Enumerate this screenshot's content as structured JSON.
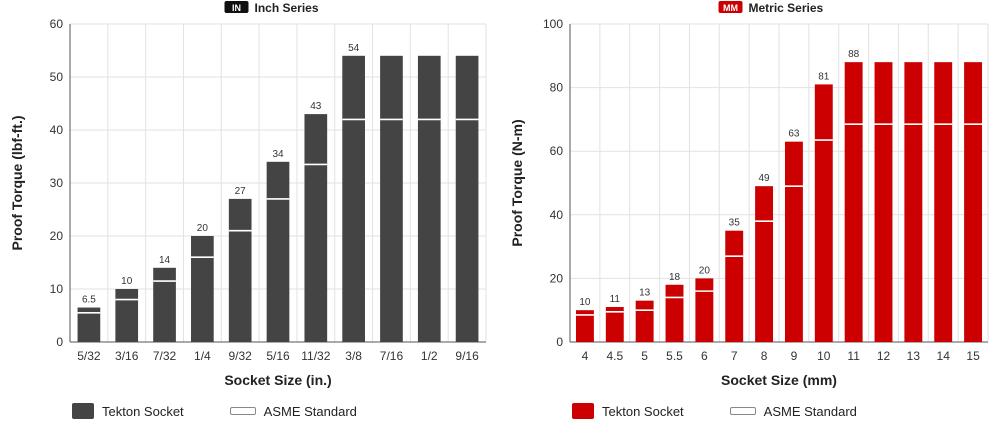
{
  "chart_data": [
    {
      "id": "inch",
      "type": "bar",
      "badge": "IN",
      "badge_color": "#111111",
      "title": "Inch Series",
      "xlabel": "Socket Size (in.)",
      "ylabel": "Proof Torque (lbf-ft.)",
      "ylim": [
        0,
        60
      ],
      "yticks": [
        "0",
        "10",
        "20",
        "30",
        "40",
        "50",
        "60"
      ],
      "grid": true,
      "bar_color": "#444444",
      "categories": [
        "5/32",
        "3/16",
        "7/32",
        "1/4",
        "9/32",
        "5/16",
        "11/32",
        "3/8",
        "7/16",
        "1/2",
        "9/16"
      ],
      "series": [
        {
          "name": "Tekton Socket",
          "values": [
            6.5,
            10,
            14,
            20,
            27,
            34,
            43,
            54,
            54,
            54,
            54
          ]
        },
        {
          "name": "ASME Standard",
          "values": [
            5.5,
            8,
            11.5,
            16,
            21,
            27,
            33.5,
            42,
            42,
            42,
            42
          ]
        }
      ],
      "data_labels": [
        "6.5",
        "10",
        "14",
        "20",
        "27",
        "34",
        "43",
        "54",
        "",
        "",
        ""
      ],
      "legend": {
        "position": "bottom",
        "items": [
          "Tekton Socket",
          "ASME Standard"
        ]
      }
    },
    {
      "id": "metric",
      "type": "bar",
      "badge": "MM",
      "badge_color": "#cc0000",
      "title": "Metric Series",
      "xlabel": "Socket Size (mm)",
      "ylabel": "Proof Torque (N-m)",
      "ylim": [
        0,
        100
      ],
      "yticks": [
        "0",
        "20",
        "40",
        "60",
        "80",
        "100"
      ],
      "grid": true,
      "bar_color": "#cc0000",
      "categories": [
        "4",
        "4.5",
        "5",
        "5.5",
        "6",
        "7",
        "8",
        "9",
        "10",
        "11",
        "12",
        "13",
        "14",
        "15"
      ],
      "series": [
        {
          "name": "Tekton Socket",
          "values": [
            10,
            11,
            13,
            18,
            20,
            35,
            49,
            63,
            81,
            88,
            88,
            88,
            88,
            88
          ]
        },
        {
          "name": "ASME Standard",
          "values": [
            8.5,
            9.5,
            10,
            14,
            16,
            27,
            38,
            49,
            63.5,
            68.5,
            68.5,
            68.5,
            68.5,
            68.5
          ]
        }
      ],
      "data_labels": [
        "10",
        "11",
        "13",
        "18",
        "20",
        "35",
        "49",
        "63",
        "81",
        "88",
        "",
        "",
        "",
        ""
      ],
      "legend": {
        "position": "bottom",
        "items": [
          "Tekton Socket",
          "ASME Standard"
        ]
      }
    }
  ]
}
